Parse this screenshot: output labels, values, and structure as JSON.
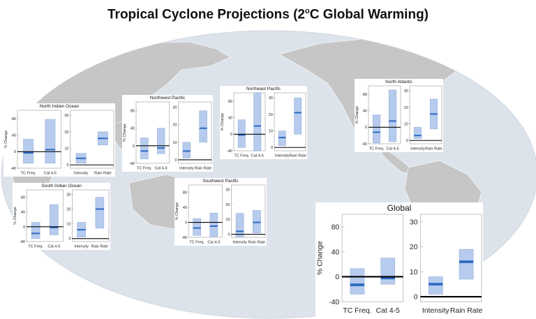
{
  "title": {
    "text": "Tropical Cyclone Projections (2",
    "superscript": "o",
    "suffix": "C Global Warming)"
  },
  "colors": {
    "ocean": "#dde3ea",
    "land": "#c6c6c6",
    "box_fill": "#a9c2ea",
    "box_edge": "#8ea9d6",
    "median": "#2d6bc2",
    "zero_line": "#000000",
    "axis": "#999999"
  },
  "chart_data": [
    {
      "id": "north-indian-ocean",
      "title": "North Indian Ocean",
      "type": "boxplot",
      "left": {
        "ylabel": "% Change",
        "ylim": [
          -40,
          100
        ],
        "ticks": [
          80,
          40,
          0,
          -40
        ],
        "categories": [
          "TC Freq.",
          "Cat 4-5"
        ],
        "boxes": [
          {
            "low": -28,
            "high": 30,
            "median": -3
          },
          {
            "low": -28,
            "high": 78,
            "median": 5
          }
        ]
      },
      "right": {
        "ylim": [
          -2,
          33
        ],
        "ticks": [
          30,
          20,
          10,
          0
        ],
        "categories": [
          "Intensity",
          "Rain Rate"
        ],
        "boxes": [
          {
            "low": 1,
            "high": 7,
            "median": 4
          },
          {
            "low": 12,
            "high": 20,
            "median": 16
          }
        ]
      }
    },
    {
      "id": "northwest-pacific",
      "title": "Northwest Pacific",
      "type": "boxplot",
      "left": {
        "ylabel": "% Change",
        "ylim": [
          -40,
          100
        ],
        "ticks": [
          80,
          40,
          0,
          -40
        ],
        "categories": [
          "TC Freq.",
          "Cat 4-5"
        ],
        "boxes": [
          {
            "low": -30,
            "high": 18,
            "median": -12
          },
          {
            "low": -18,
            "high": 40,
            "median": -5
          }
        ]
      },
      "right": {
        "ylim": [
          -2,
          33
        ],
        "ticks": [
          30,
          20,
          10,
          0
        ],
        "categories": [
          "Intensity",
          "Rain Rate"
        ],
        "boxes": [
          {
            "low": 1,
            "high": 10,
            "median": 5
          },
          {
            "low": 10,
            "high": 28,
            "median": 18
          }
        ]
      }
    },
    {
      "id": "northeast-pacific",
      "title": "Northeast Pacific",
      "type": "boxplot",
      "left": {
        "ylabel": "% Change",
        "ylim": [
          -40,
          100
        ],
        "ticks": [
          80,
          40,
          0,
          -40
        ],
        "categories": [
          "TC Freq.",
          "Cat 4-5"
        ],
        "boxes": [
          {
            "low": -32,
            "high": 35,
            "median": -2
          },
          {
            "low": -40,
            "high": 100,
            "median": 20
          }
        ]
      },
      "right": {
        "ylim": [
          -2,
          33
        ],
        "ticks": [
          30,
          20,
          10,
          0
        ],
        "categories": [
          "Intensity",
          "Rain Rate"
        ],
        "boxes": [
          {
            "low": 1,
            "high": 10,
            "median": 6
          },
          {
            "low": 8,
            "high": 30,
            "median": 21
          }
        ]
      }
    },
    {
      "id": "north-atlantic",
      "title": "North Atlantic",
      "type": "boxplot",
      "left": {
        "ylabel": "% Change",
        "ylim": [
          -40,
          100
        ],
        "ticks": [
          80,
          40,
          0,
          -40
        ],
        "categories": [
          "TC Freq.",
          "Cat 4-5"
        ],
        "boxes": [
          {
            "low": -38,
            "high": 30,
            "median": -12
          },
          {
            "low": -35,
            "high": 90,
            "median": 15
          }
        ]
      },
      "right": {
        "ylim": [
          -2,
          33
        ],
        "ticks": [
          30,
          20,
          10,
          0
        ],
        "categories": [
          "Intensity",
          "Rain Rate"
        ],
        "boxes": [
          {
            "low": 1,
            "high": 8,
            "median": 3
          },
          {
            "low": 7,
            "high": 25,
            "median": 16
          }
        ]
      }
    },
    {
      "id": "south-indian-ocean",
      "title": "South Indian Ocean",
      "type": "boxplot",
      "left": {
        "ylabel": "% Change",
        "ylim": [
          -40,
          100
        ],
        "ticks": [
          80,
          40,
          0,
          -40
        ],
        "categories": [
          "TC Freq.",
          "Cat 4-5"
        ],
        "boxes": [
          {
            "low": -32,
            "high": 12,
            "median": -18
          },
          {
            "low": -22,
            "high": 60,
            "median": -2
          }
        ]
      },
      "right": {
        "ylim": [
          -2,
          33
        ],
        "ticks": [
          30,
          20,
          10,
          0
        ],
        "categories": [
          "Intensity",
          "Rain Rate"
        ],
        "boxes": [
          {
            "low": 1,
            "high": 11,
            "median": 6
          },
          {
            "low": 7,
            "high": 28,
            "median": 20
          }
        ]
      }
    },
    {
      "id": "southwest-pacific",
      "title": "Southwest Pacific",
      "type": "boxplot",
      "left": {
        "ylabel": "% Change",
        "ylim": [
          -40,
          100
        ],
        "ticks": [
          80,
          40,
          0,
          -40
        ],
        "categories": [
          "TC Freq.",
          "Cat 4-5"
        ],
        "boxes": [
          {
            "low": -35,
            "high": 10,
            "median": -15
          },
          {
            "low": -38,
            "high": 25,
            "median": -10
          }
        ]
      },
      "right": {
        "ylim": [
          -2,
          33
        ],
        "ticks": [
          30,
          20,
          10,
          0
        ],
        "categories": [
          "Intensity",
          "Rain Rate"
        ],
        "boxes": [
          {
            "low": -2,
            "high": 14,
            "median": 2
          },
          {
            "low": 1,
            "high": 16,
            "median": 8
          }
        ]
      }
    },
    {
      "id": "global",
      "title": "Global",
      "type": "boxplot",
      "left": {
        "ylabel": "% Change",
        "ylim": [
          -40,
          100
        ],
        "ticks": [
          80,
          40,
          0,
          -40
        ],
        "categories": [
          "TC Freq.",
          "Cat 4-5"
        ],
        "boxes": [
          {
            "low": -28,
            "high": 13,
            "median": -13
          },
          {
            "low": -12,
            "high": 30,
            "median": -2
          }
        ]
      },
      "right": {
        "ylim": [
          -2,
          33
        ],
        "ticks": [
          30,
          20,
          10,
          0
        ],
        "categories": [
          "Intensity",
          "Rain Rate"
        ],
        "boxes": [
          {
            "low": 1,
            "high": 8,
            "median": 5
          },
          {
            "low": 7,
            "high": 19,
            "median": 14
          }
        ]
      }
    }
  ]
}
